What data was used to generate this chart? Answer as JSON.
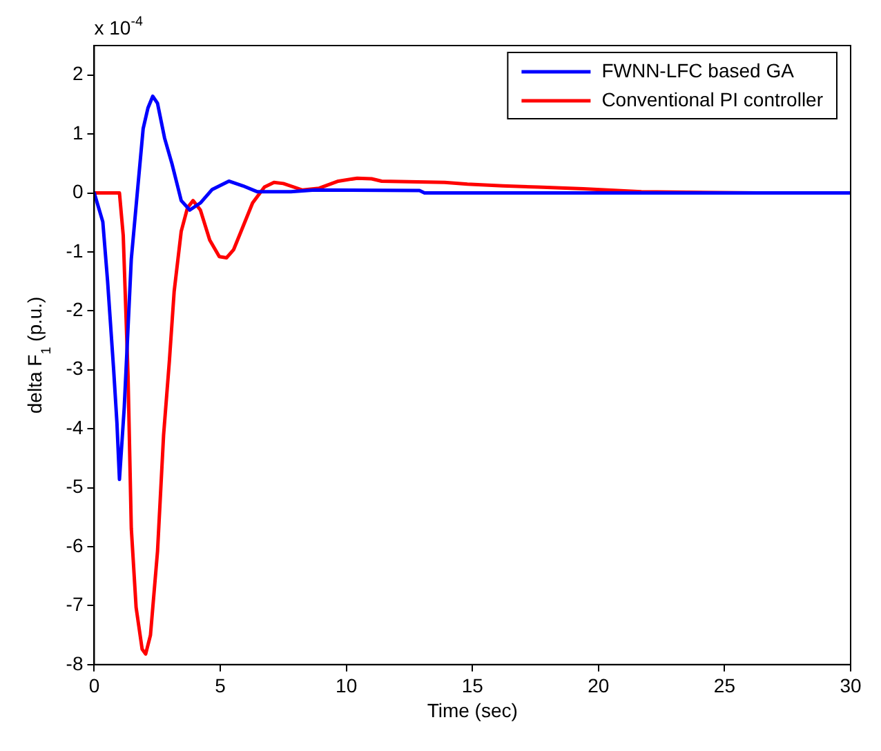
{
  "chart_data": {
    "type": "line",
    "xlabel": "Time (sec)",
    "ylabel": "delta F$_{1}$ (p.u.)",
    "annotations": [
      "x 10$^{-4}$"
    ],
    "xlim": [
      0,
      30
    ],
    "xticks": [
      0,
      5,
      10,
      15,
      20,
      25,
      30
    ],
    "ylim": [
      -8,
      2.5
    ],
    "yticks": [
      -8,
      -7,
      -6,
      -5,
      -4,
      -3,
      -2,
      -1,
      0,
      1,
      2
    ],
    "grid": false,
    "legend": "top right",
    "marker": "none",
    "line_style": "solid",
    "series": [
      {
        "name": "FWNN-LFC based GA",
        "color": "#0000ff",
        "x": [
          0,
          0.34,
          0.53,
          0.77,
          0.9,
          1.0,
          1.19,
          1.47,
          1.72,
          1.94,
          2.13,
          2.32,
          2.51,
          2.79,
          3.08,
          3.45,
          3.79,
          4.21,
          4.68,
          5.34,
          5.9,
          6.47,
          7.8,
          8.74,
          12.9,
          13.1,
          30
        ],
        "values": [
          0,
          -0.49,
          -1.5,
          -3.0,
          -3.9,
          -4.86,
          -3.64,
          -1.12,
          0.06,
          1.09,
          1.44,
          1.64,
          1.52,
          0.93,
          0.5,
          -0.13,
          -0.29,
          -0.17,
          0.06,
          0.2,
          0.12,
          0.02,
          0.02,
          0.05,
          0.04,
          0,
          0
        ]
      },
      {
        "name": "Conventional PI controller",
        "color": "#ff0000",
        "x": [
          0,
          1,
          1.15,
          1.34,
          1.47,
          1.66,
          1.9,
          2.04,
          2.23,
          2.51,
          2.75,
          2.98,
          3.17,
          3.45,
          3.7,
          3.92,
          4.21,
          4.58,
          4.96,
          5.25,
          5.53,
          5.9,
          6.28,
          6.75,
          7.13,
          7.5,
          8.26,
          8.92,
          9.68,
          10.43,
          11,
          11.4,
          13.9,
          14.8,
          16.2,
          17.6,
          19.4,
          21.7,
          26.3,
          30
        ],
        "values": [
          0,
          0,
          -0.72,
          -3.09,
          -5.69,
          -7.03,
          -7.74,
          -7.82,
          -7.5,
          -6.08,
          -4.11,
          -2.85,
          -1.67,
          -0.65,
          -0.25,
          -0.13,
          -0.29,
          -0.8,
          -1.08,
          -1.1,
          -0.96,
          -0.57,
          -0.17,
          0.1,
          0.18,
          0.16,
          0.05,
          0.08,
          0.2,
          0.25,
          0.24,
          0.2,
          0.18,
          0.15,
          0.12,
          0.1,
          0.07,
          0.02,
          0,
          0
        ]
      }
    ]
  }
}
